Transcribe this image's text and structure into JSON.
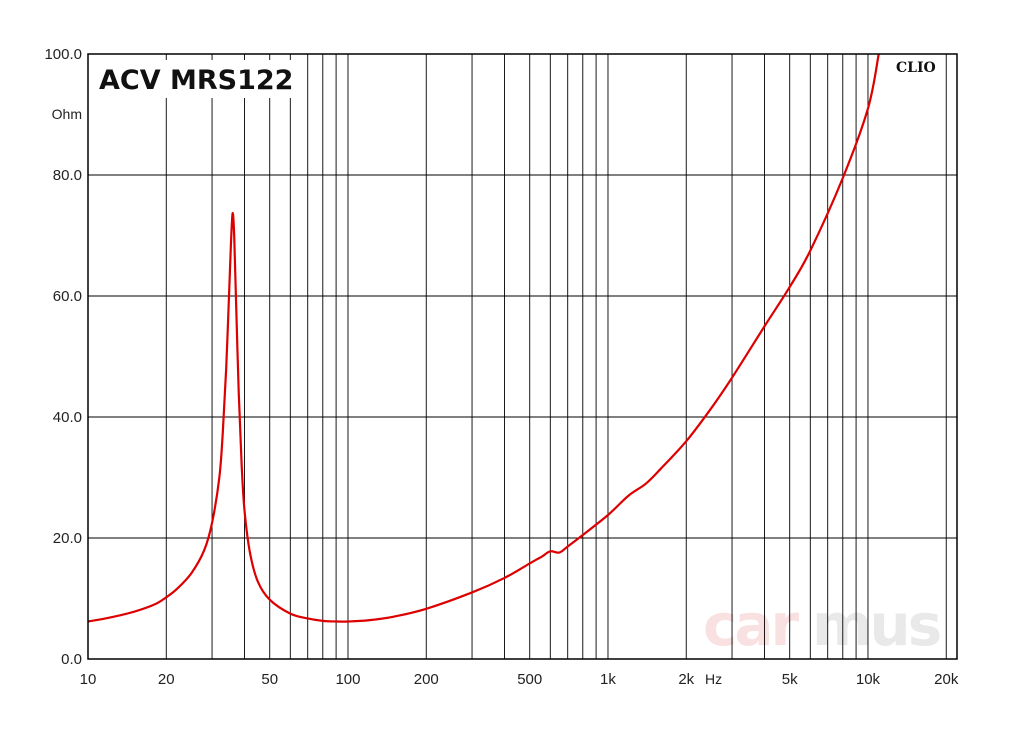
{
  "chart_data": {
    "type": "line",
    "title": "ACV MRS122",
    "brand_label": "CLIO",
    "watermark": {
      "part1": "car",
      "part2": "mus"
    },
    "xlabel": "Hz",
    "ylabel": "Ohm",
    "x_scale": "log",
    "xlim": [
      10,
      22000
    ],
    "ylim": [
      0,
      100
    ],
    "grid": true,
    "x_ticks": [
      {
        "value": 10,
        "label": "10"
      },
      {
        "value": 20,
        "label": "20"
      },
      {
        "value": 50,
        "label": "50"
      },
      {
        "value": 100,
        "label": "100"
      },
      {
        "value": 200,
        "label": "200"
      },
      {
        "value": 500,
        "label": "500"
      },
      {
        "value": 1000,
        "label": "1k"
      },
      {
        "value": 2000,
        "label": "2k"
      },
      {
        "value": 5000,
        "label": "5k"
      },
      {
        "value": 10000,
        "label": "10k"
      },
      {
        "value": 20000,
        "label": "20k"
      }
    ],
    "y_ticks": [
      {
        "value": 0,
        "label": "0.0"
      },
      {
        "value": 20,
        "label": "20.0"
      },
      {
        "value": 40,
        "label": "40.0"
      },
      {
        "value": 60,
        "label": "60.0"
      },
      {
        "value": 80,
        "label": "80.0"
      },
      {
        "value": 100,
        "label": "100.0"
      }
    ],
    "series": [
      {
        "color": "#dd0000",
        "x": [
          10,
          12,
          15,
          18,
          20,
          22,
          25,
          28,
          30,
          32,
          33,
          34,
          35,
          35.5,
          36,
          36.5,
          37,
          38,
          39,
          40,
          42,
          45,
          50,
          60,
          70,
          80,
          90,
          100,
          120,
          150,
          200,
          300,
          400,
          500,
          560,
          600,
          650,
          700,
          800,
          1000,
          1200,
          1400,
          1600,
          2000,
          2500,
          3000,
          4000,
          5000,
          6000,
          8000,
          10000,
          11000
        ],
        "y": [
          6.2,
          6.8,
          7.8,
          9.0,
          10.2,
          11.6,
          14.2,
          18.0,
          22.5,
          30.0,
          37.5,
          48.0,
          62.0,
          69.0,
          73.7,
          70.0,
          61.0,
          44.0,
          32.0,
          24.5,
          17.5,
          12.8,
          9.8,
          7.5,
          6.7,
          6.3,
          6.2,
          6.2,
          6.4,
          7.0,
          8.3,
          11.0,
          13.4,
          15.8,
          17.0,
          17.8,
          17.6,
          18.6,
          20.5,
          23.8,
          27.0,
          29.0,
          31.5,
          36.0,
          41.5,
          46.5,
          55.0,
          61.5,
          67.5,
          79.5,
          91.0,
          100.0
        ]
      }
    ]
  }
}
